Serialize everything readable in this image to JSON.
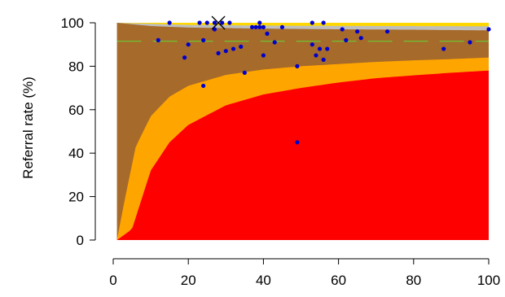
{
  "chart_data": {
    "type": "scatter",
    "ylabel": "Referral rate (%)",
    "xlim": [
      1,
      100
    ],
    "ylim": [
      0,
      100
    ],
    "x_ticks": [
      "0",
      "20",
      "40",
      "60",
      "80",
      "100"
    ],
    "y_ticks": [
      "0",
      "20",
      "40",
      "60",
      "80",
      "100"
    ],
    "reference_line": {
      "y": 91.5,
      "style": "dashed",
      "color": "#66CC33"
    },
    "bands": [
      {
        "color": "#FF0000",
        "upper": [
          [
            1,
            0
          ],
          [
            5,
            5
          ],
          [
            10,
            32
          ],
          [
            15,
            45
          ],
          [
            20,
            53
          ],
          [
            30,
            62
          ],
          [
            40,
            67
          ],
          [
            50,
            70
          ],
          [
            60,
            72.5
          ],
          [
            70,
            74.5
          ],
          [
            80,
            75.8
          ],
          [
            90,
            77
          ],
          [
            100,
            78
          ]
        ]
      },
      {
        "color": "#FFA500",
        "upper": [
          [
            1,
            0
          ],
          [
            3,
            18
          ],
          [
            6,
            43
          ],
          [
            10,
            57
          ],
          [
            15,
            66
          ],
          [
            20,
            71
          ],
          [
            30,
            76
          ],
          [
            40,
            78.5
          ],
          [
            50,
            80
          ],
          [
            60,
            81
          ],
          [
            70,
            82
          ],
          [
            80,
            82.7
          ],
          [
            90,
            83.3
          ],
          [
            100,
            84
          ]
        ]
      },
      {
        "color": "#A66A2A",
        "upper": [
          [
            1,
            100
          ],
          [
            10,
            98.5
          ],
          [
            20,
            97.8
          ],
          [
            40,
            97.3
          ],
          [
            60,
            97
          ],
          [
            80,
            96.8
          ],
          [
            100,
            96.5
          ]
        ]
      },
      {
        "color": "#BEBEBE",
        "upper": [
          [
            1,
            100
          ],
          [
            20,
            99
          ],
          [
            50,
            98.6
          ],
          [
            100,
            98.4
          ]
        ]
      },
      {
        "color": "#FFD700",
        "upper": [
          [
            1,
            100
          ],
          [
            100,
            100
          ]
        ]
      }
    ],
    "points": [
      {
        "x": 12,
        "y": 92
      },
      {
        "x": 15,
        "y": 100
      },
      {
        "x": 19,
        "y": 84
      },
      {
        "x": 20,
        "y": 90
      },
      {
        "x": 23,
        "y": 100
      },
      {
        "x": 24,
        "y": 92
      },
      {
        "x": 24,
        "y": 71
      },
      {
        "x": 25,
        "y": 100
      },
      {
        "x": 27,
        "y": 100
      },
      {
        "x": 27,
        "y": 97
      },
      {
        "x": 28,
        "y": 86
      },
      {
        "x": 29,
        "y": 100
      },
      {
        "x": 30,
        "y": 87
      },
      {
        "x": 31,
        "y": 100
      },
      {
        "x": 32,
        "y": 88
      },
      {
        "x": 34,
        "y": 89
      },
      {
        "x": 35,
        "y": 77
      },
      {
        "x": 37,
        "y": 98
      },
      {
        "x": 38,
        "y": 98
      },
      {
        "x": 39,
        "y": 98
      },
      {
        "x": 39,
        "y": 100
      },
      {
        "x": 40,
        "y": 98
      },
      {
        "x": 40,
        "y": 85
      },
      {
        "x": 41,
        "y": 95
      },
      {
        "x": 43,
        "y": 91
      },
      {
        "x": 45,
        "y": 98
      },
      {
        "x": 49,
        "y": 80
      },
      {
        "x": 49,
        "y": 45
      },
      {
        "x": 53,
        "y": 100
      },
      {
        "x": 53,
        "y": 90
      },
      {
        "x": 54,
        "y": 85
      },
      {
        "x": 55,
        "y": 88
      },
      {
        "x": 56,
        "y": 100
      },
      {
        "x": 56,
        "y": 83
      },
      {
        "x": 57,
        "y": 88
      },
      {
        "x": 61,
        "y": 97
      },
      {
        "x": 62,
        "y": 92
      },
      {
        "x": 65,
        "y": 96
      },
      {
        "x": 66,
        "y": 93
      },
      {
        "x": 73,
        "y": 96
      },
      {
        "x": 88,
        "y": 88
      },
      {
        "x": 95,
        "y": 91
      },
      {
        "x": 100,
        "y": 97
      }
    ],
    "highlight": {
      "x": 28,
      "y": 100,
      "marker": "x"
    }
  }
}
